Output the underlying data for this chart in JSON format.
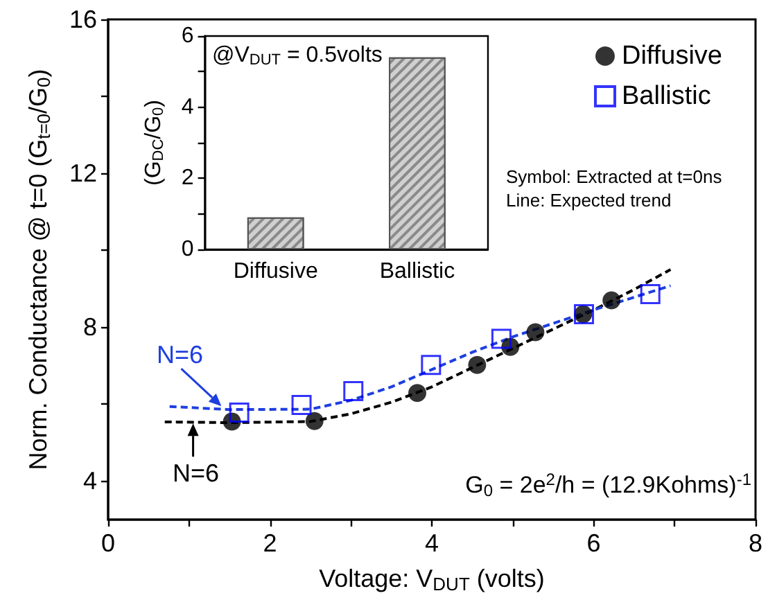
{
  "chart_data": [
    {
      "type": "scatter",
      "xlabel": "Voltage: V$_{DUT}$ (volts)",
      "ylabel": "Norm. Conductance @ t=0 (G$_{t=0}$/G$_{0}$)",
      "xlim": [
        0,
        8
      ],
      "ylim": [
        3,
        16
      ],
      "xticks": [
        0,
        {
          "value": 1,
          "label": null
        },
        2,
        {
          "value": 3,
          "label": null
        },
        4,
        {
          "value": 5,
          "label": null
        },
        6,
        {
          "value": 7,
          "label": null
        },
        8
      ],
      "yticks": [
        4,
        {
          "value": 6,
          "label": null
        },
        8,
        {
          "value": 10,
          "label": null
        },
        12,
        {
          "value": 14,
          "label": null
        },
        16
      ],
      "legend": "top right",
      "series": [
        {
          "name": "Diffusive",
          "color": "#000000",
          "marker": "circle",
          "x": [
            1.53,
            2.55,
            3.82,
            4.56,
            4.97,
            5.28,
            5.87,
            6.22
          ],
          "values": [
            5.55,
            5.56,
            6.29,
            7.02,
            7.49,
            7.87,
            8.34,
            8.7
          ]
        },
        {
          "name": "Ballistic",
          "color": "#0000ff",
          "marker": "square",
          "x": [
            1.62,
            2.39,
            3.03,
            3.99,
            4.86,
            5.88,
            6.7
          ],
          "values": [
            5.78,
            5.98,
            6.34,
            7.02,
            7.7,
            8.34,
            8.86
          ]
        },
        {
          "type": "line",
          "color": "#000000",
          "line_style": "dashed",
          "marker": "none",
          "x": [
            0.7,
            1.5,
            2.5,
            3,
            3.5,
            4,
            4.5,
            5,
            5.5,
            6,
            6.5,
            6.95
          ],
          "values": [
            5.54,
            5.52,
            5.55,
            5.75,
            6.05,
            6.45,
            6.95,
            7.45,
            7.95,
            8.45,
            8.98,
            9.5
          ]
        },
        {
          "type": "line",
          "color": "#1e3fe0",
          "line_style": "dashed",
          "marker": "none",
          "x": [
            0.76,
            1.5,
            2.5,
            3,
            3.5,
            4,
            4.5,
            5,
            5.5,
            6,
            6.5,
            6.95
          ],
          "values": [
            5.94,
            5.86,
            5.87,
            6.1,
            6.45,
            6.9,
            7.35,
            7.75,
            8.1,
            8.45,
            8.78,
            9.08
          ]
        }
      ],
      "annotations": [
        {
          "text": "N=6",
          "x": 1.4,
          "y": 5.95
        },
        {
          "text": "N=6",
          "x": 1.05,
          "y": 5.5
        },
        "Symbol: Extracted at t=0ns",
        "Line: Expected trend",
        "G$_{0}$ = 2e$^{2}$/h = (12.9Kohms)$^{-1}$"
      ]
    },
    {
      "type": "bar",
      "categories": [
        "Diffusive",
        "Ballistic"
      ],
      "values": [
        0.9,
        5.4
      ],
      "color": "#d0d0d0",
      "ylabel": "(G$_{DC}$/G$_{0}$)",
      "ylim": [
        0,
        6
      ],
      "yticks": [
        0,
        {
          "value": 1,
          "label": null
        },
        2,
        {
          "value": 3,
          "label": null
        },
        4,
        {
          "value": 5,
          "label": null
        },
        6
      ],
      "annotations": [
        "@V$_{DUT}$ = 0.5volts"
      ]
    }
  ]
}
